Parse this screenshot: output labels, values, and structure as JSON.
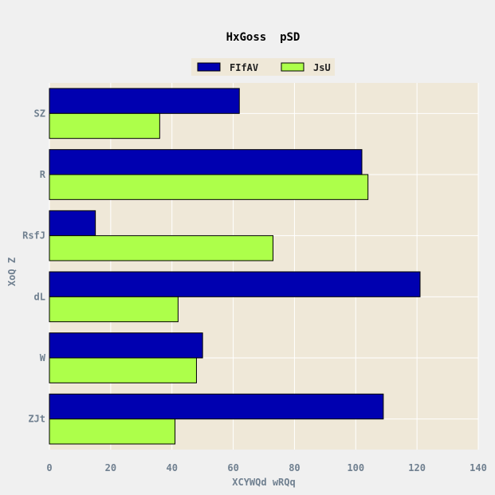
{
  "chart_data": {
    "type": "bar",
    "orientation": "horizontal",
    "title": "HxGoss  pSD",
    "xlabel": "XCYWQd wRQq",
    "ylabel": "XoQ Z",
    "categories": [
      "SZ",
      "R",
      "RsfJ",
      "dL",
      "W",
      "ZJt"
    ],
    "series": [
      {
        "name": "FIfAV",
        "values": [
          62,
          102,
          15,
          121,
          50,
          109
        ],
        "color": "#0000b0"
      },
      {
        "name": "JsU",
        "values": [
          36,
          104,
          73,
          42,
          48,
          41
        ],
        "color": "#adff4a"
      }
    ],
    "xlim": [
      0,
      140
    ],
    "xticks": [
      0,
      20,
      40,
      60,
      80,
      100,
      120,
      140
    ],
    "grid": true,
    "legend_position": "top-center",
    "colors": {
      "background": "#f0f0f0",
      "plot_background": "#efe8d8",
      "grid": "#ffffff",
      "bar_edge": "#000000",
      "tick_text": "#708090"
    }
  }
}
